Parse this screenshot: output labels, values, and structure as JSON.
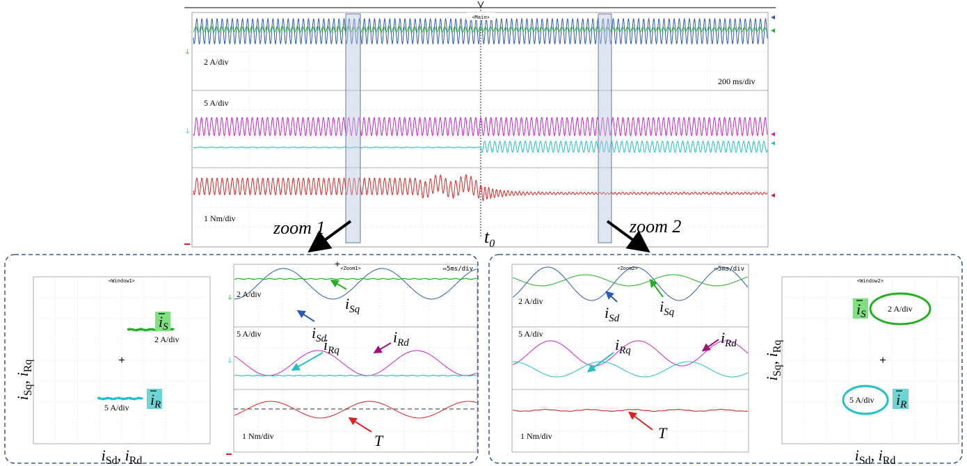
{
  "overview": {
    "scale_top": "2 A/div",
    "scale_mid": "5 A/div",
    "scale_bot": "1 Nm/div",
    "time_scale": "200 ms/div",
    "main_tag": "<Main>",
    "zoom1_label": "zoom 1",
    "zoom2_label": "zoom 2",
    "t0_main": "t",
    "t0_sub": "0"
  },
  "panel_left": {
    "xy_tag": "<Window1>",
    "zoom_tag": "<Zoom1>",
    "zoom_timebase": "⇔5ms/div",
    "xy_scale_s": "2 A/div",
    "xy_scale_r": "5 A/div",
    "scale_top": "2 A/div",
    "scale_mid": "5 A/div",
    "scale_bot": "1 Nm/div"
  },
  "panel_right": {
    "xy_tag": "<Window2>",
    "zoom_tag": "<Zoom2>",
    "zoom_timebase": "⇔5ms/div",
    "xy_scale_s": "2 A/div",
    "xy_scale_r": "5 A/div",
    "scale_top": "2 A/div",
    "scale_mid": "5 A/div",
    "scale_bot": "1 Nm/div"
  },
  "axis_labels": {
    "y_first": "i",
    "y_first_sub": "Sq",
    "y_sep": ", ",
    "y_second": "i",
    "y_second_sub": "Rq",
    "x_first": "i",
    "x_first_sub": "Sd",
    "x_sep": ", ",
    "x_second": "i",
    "x_second_sub": "Rd"
  },
  "symbols": {
    "i": "i",
    "sd": "Sd",
    "sq": "Sq",
    "rq": "Rq",
    "rd": "Rd",
    "torque": "T",
    "s_vec": "i",
    "s_vec_sub": "S",
    "r_vec": "i",
    "r_vec_sub": "R"
  },
  "colors": {
    "isd": "#2a59b8",
    "isq": "#22b022",
    "ird": "#cc22cc",
    "irq": "#22c0c8",
    "torque": "#e02020",
    "frame": "#1e3a78",
    "vec_s_bg": "#7ee07e",
    "vec_r_bg": "#6cd6d6"
  }
}
